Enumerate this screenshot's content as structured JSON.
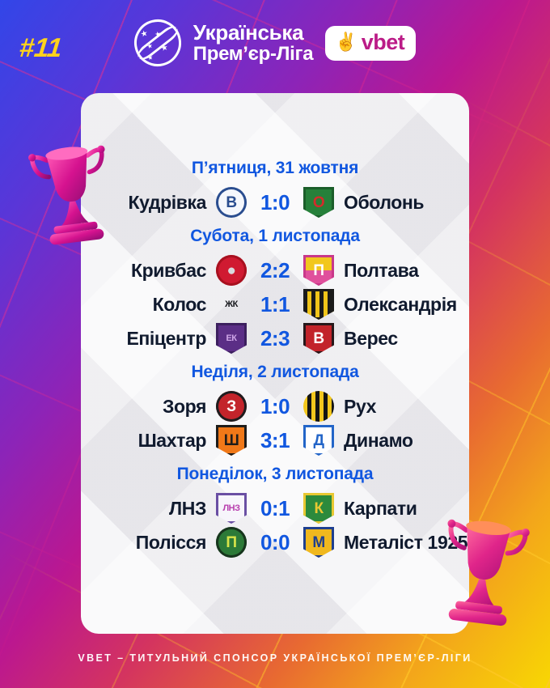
{
  "issue_number": "#11",
  "header": {
    "league_name_line1": "Українська",
    "league_name_line2": "Прем’єр-Ліга",
    "league_logo_icon": "upl-ball-icon",
    "sponsor_badge": {
      "hand_icon": "victory-hand-icon",
      "hand_glyph": "✌",
      "text": "vbet"
    }
  },
  "colors": {
    "accent_blue": "#1157e0",
    "team_text": "#101a2e",
    "issue_yellow": "#ffd21c",
    "sponsor_magenta": "#bb1b87",
    "card_bg": "#f0eff3"
  },
  "schedule": {
    "days": [
      {
        "date": "П’ятниця, 31 жовтня",
        "matches": [
          {
            "home": "Кудрівка",
            "score": "1:0",
            "away": "Оболонь",
            "home_crest": {
              "name": "kudrivka-crest",
              "shape": "circle",
              "bg": "#f5f7fc",
              "border": "#2a4d8f",
              "fg": "#2a4d8f",
              "monogram": "В"
            },
            "away_crest": {
              "name": "obolon-crest",
              "shape": "shield",
              "bg": "#26803a",
              "border": "#1b5e2a",
              "fg": "#d42b2b",
              "monogram": "О"
            }
          }
        ]
      },
      {
        "date": "Субота, 1 листопада",
        "matches": [
          {
            "home": "Кривбас",
            "score": "2:2",
            "away": "Полтава",
            "home_crest": {
              "name": "kryvbas-crest",
              "shape": "circle",
              "bg": "#d01a31",
              "border": "#a8101f",
              "fg": "#d9dade",
              "monogram": "●"
            },
            "away_crest": {
              "name": "poltava-crest",
              "shape": "shield",
              "bg": "#f2c71d",
              "bg2": "#e0509c",
              "border": "#c9388a",
              "fg": "#ffffff",
              "monogram": "П"
            }
          },
          {
            "home": "Колос",
            "score": "1:1",
            "away": "Олександрія",
            "home_crest": {
              "name": "kolos-crest",
              "shape": "circle",
              "bg": "transparent",
              "fg": "#15161a",
              "monogram": "ЖК"
            },
            "away_crest": {
              "name": "oleksandriia-crest",
              "shape": "shield",
              "stripes": true,
              "bg": "#1a1a1a",
              "bg2": "#f0c419",
              "border": "#1a1a1a",
              "fg": "#f0c419",
              "monogram": ""
            }
          },
          {
            "home": "Епіцентр",
            "score": "2:3",
            "away": "Верес",
            "home_crest": {
              "name": "epitsentr-crest",
              "shape": "shield",
              "bg": "#5b2e86",
              "border": "#3c1f5e",
              "fg": "#cfa6e8",
              "monogram": "ЕК"
            },
            "away_crest": {
              "name": "veres-crest",
              "shape": "shield",
              "bg": "#c2232a",
              "border": "#26171a",
              "fg": "#ffffff",
              "monogram": "В"
            }
          }
        ]
      },
      {
        "date": "Неділя, 2 листопада",
        "matches": [
          {
            "home": "Зоря",
            "score": "1:0",
            "away": "Рух",
            "home_crest": {
              "name": "zorya-crest",
              "shape": "circle",
              "bg": "#c3242b",
              "border": "#1d1d1f",
              "fg": "#ffffff",
              "monogram": "З"
            },
            "away_crest": {
              "name": "rukh-crest",
              "shape": "circle",
              "stripes": true,
              "bg": "#f2c71d",
              "bg2": "#141414",
              "fg": "#ffffff",
              "monogram": ""
            }
          },
          {
            "home": "Шахтар",
            "score": "3:1",
            "away": "Динамо",
            "home_crest": {
              "name": "shakhtar-crest",
              "shape": "shield",
              "bg": "#f07818",
              "border": "#1e1c1a",
              "fg": "#1e1c1a",
              "monogram": "Ш"
            },
            "away_crest": {
              "name": "dynamo-crest",
              "shape": "shield",
              "bg": "#ffffff",
              "border": "#2365c8",
              "fg": "#2365c8",
              "monogram": "Д"
            }
          }
        ]
      },
      {
        "date": "Понеділок, 3 листопада",
        "matches": [
          {
            "home": "ЛНЗ",
            "score": "0:1",
            "away": "Карпати",
            "home_crest": {
              "name": "lnz-crest",
              "shape": "shield",
              "bg": "#f7f5fb",
              "border": "#6a4fa3",
              "fg": "#b83fae",
              "monogram": "ЛНЗ"
            },
            "away_crest": {
              "name": "karpaty-crest",
              "shape": "shield",
              "bg": "#2c8a3c",
              "border": "#e8c832",
              "fg": "#e8c832",
              "monogram": "К"
            }
          },
          {
            "home": "Полісся",
            "score": "0:0",
            "away": "Металіст 1925",
            "home_crest": {
              "name": "polissya-crest",
              "shape": "circle",
              "bg": "#2c7a38",
              "border": "#17351d",
              "fg": "#d8e44a",
              "monogram": "П"
            },
            "away_crest": {
              "name": "metalist1925-crest",
              "shape": "shield",
              "bg": "#f0b81e",
              "border": "#1e3f8f",
              "fg": "#1e3f8f",
              "monogram": "М"
            }
          }
        ]
      }
    ]
  },
  "footer": {
    "text": "VBET – ТИТУЛЬНИЙ СПОНСОР УКРАЇНСЬКОЇ ПРЕМ’ЄР-ЛІГИ"
  },
  "decorations": {
    "left_trophy_icon": "trophy-icon",
    "right_trophy_icon": "trophy-icon"
  }
}
